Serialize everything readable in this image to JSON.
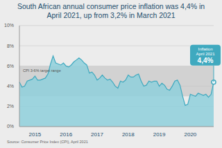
{
  "chart_data": {
    "type": "area",
    "title": "South African annual consumer price inflation was 4,4% in April 2021, up from 3,2% in March 2021",
    "source": "Source: Consumer Price Index (CPI), April 2021",
    "categories": [
      null,
      null,
      null,
      null,
      null,
      null,
      "2015",
      null,
      null,
      null,
      null,
      null,
      null,
      null,
      null,
      null,
      null,
      null,
      "2016",
      null,
      null,
      null,
      null,
      null,
      null,
      null,
      null,
      null,
      null,
      null,
      "2017",
      null,
      null,
      null,
      null,
      null,
      null,
      null,
      null,
      null,
      null,
      null,
      "2018",
      null,
      null,
      null,
      null,
      null,
      null,
      null,
      null,
      null,
      null,
      null,
      "2019",
      null,
      null,
      null,
      null,
      null,
      null,
      null,
      null,
      null,
      null,
      null,
      "2020",
      null,
      null,
      null,
      null,
      null,
      null,
      null,
      null,
      null
    ],
    "values": [
      4.4,
      3.9,
      4.0,
      4.5,
      4.6,
      4.7,
      5.0,
      4.6,
      4.6,
      4.7,
      4.8,
      5.2,
      6.2,
      7.0,
      6.3,
      6.2,
      6.1,
      6.3,
      6.0,
      5.9,
      6.1,
      6.4,
      6.6,
      6.8,
      6.6,
      6.3,
      6.1,
      5.3,
      5.4,
      5.1,
      4.6,
      4.8,
      5.1,
      4.8,
      4.6,
      4.7,
      4.4,
      4.0,
      3.8,
      4.5,
      4.4,
      4.6,
      5.1,
      4.9,
      4.9,
      5.1,
      5.2,
      4.5,
      4.0,
      4.1,
      4.5,
      4.4,
      4.5,
      4.5,
      4.0,
      4.3,
      4.1,
      3.7,
      3.6,
      4.0,
      4.5,
      4.6,
      4.1,
      3.0,
      2.1,
      2.2,
      3.2,
      3.1,
      3.0,
      3.3,
      3.2,
      3.1,
      3.2,
      2.9,
      3.2,
      4.4
    ],
    "color": "#8fd0dc",
    "ylim": [
      0,
      10
    ],
    "yticks": [
      {
        "value": 0,
        "label": "0%"
      },
      {
        "value": 2,
        "label": "2%"
      },
      {
        "value": 4,
        "label": "4%"
      },
      {
        "value": 6,
        "label": "6%"
      },
      {
        "value": 8,
        "label": "8%"
      },
      {
        "value": 10,
        "label": "10%"
      }
    ],
    "grid": true,
    "target_range": {
      "label": "CPI 3-6% target range",
      "values": [
        3,
        6
      ]
    },
    "annotation": {
      "text": "Inflation April 2021",
      "value": 4.4,
      "value_label": "4,4%"
    }
  }
}
